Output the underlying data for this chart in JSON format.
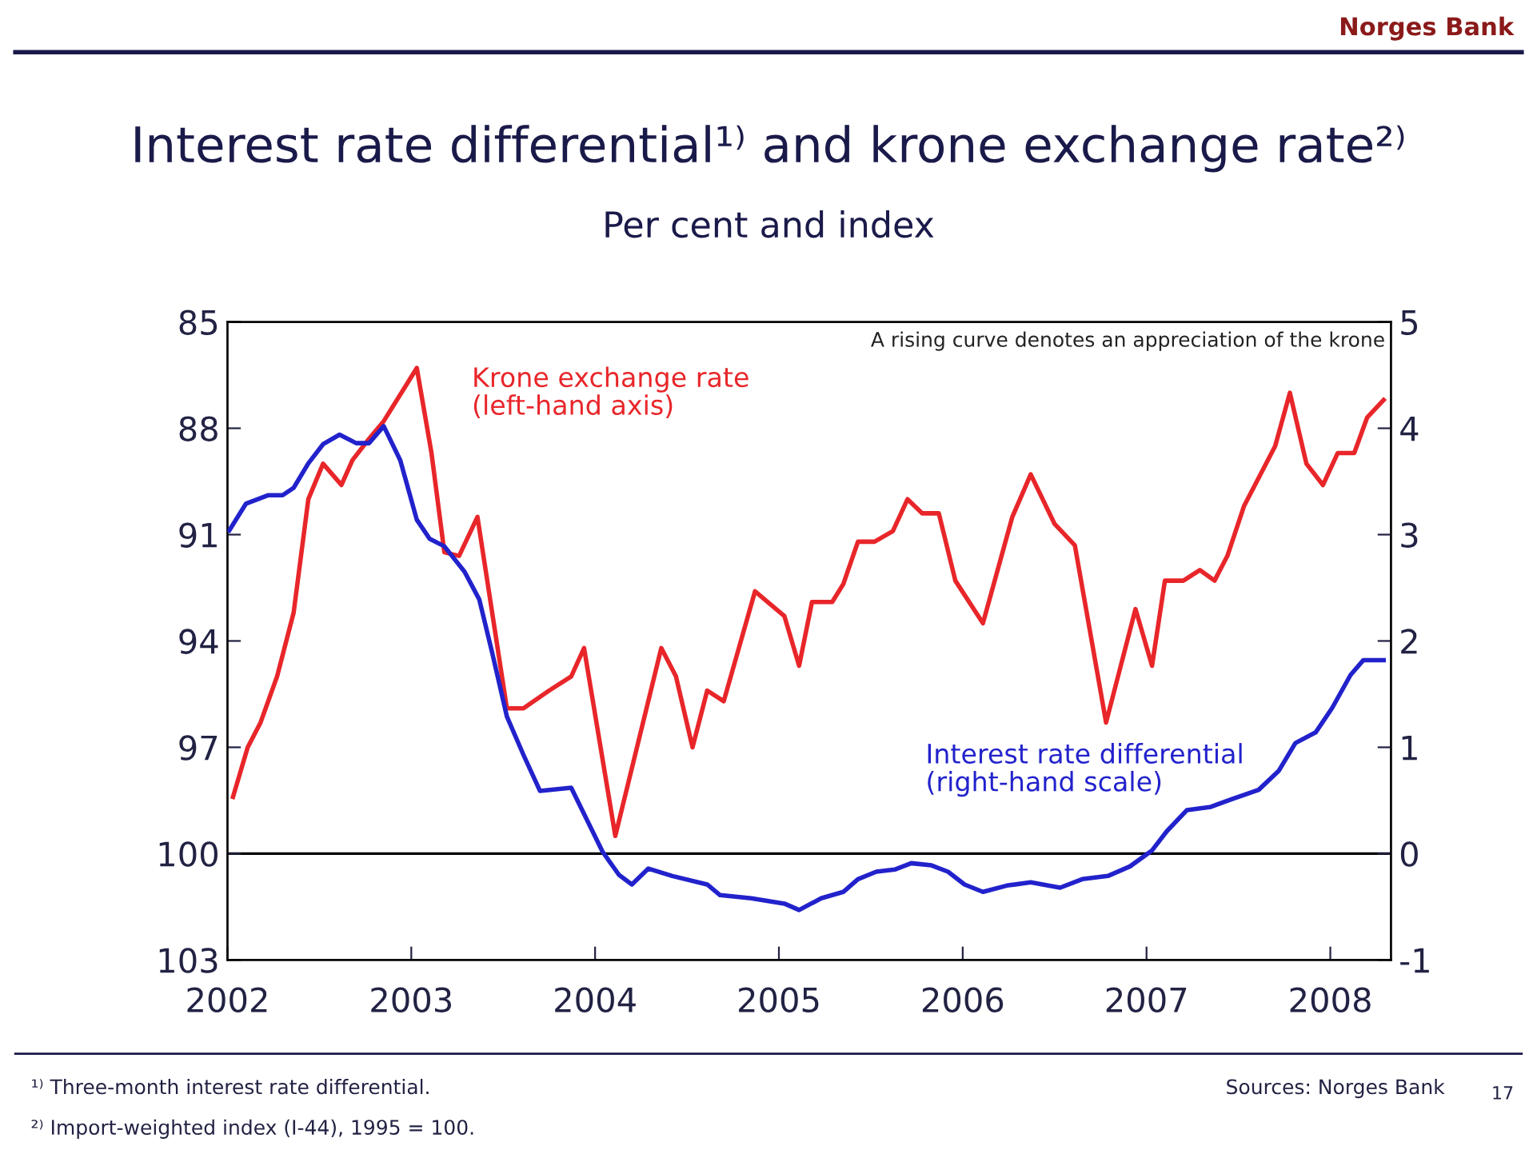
{
  "chart_data": {
    "type": "line",
    "title": "Interest rate differential¹⁾ and krone exchange rate²⁾",
    "subtitle": "Per cent and index",
    "xlim": [
      2002,
      2008.33
    ],
    "xticks": [
      2002,
      2003,
      2004,
      2005,
      2006,
      2007,
      2008
    ],
    "ylim": [
      103,
      85
    ],
    "yticks": [
      85,
      88,
      91,
      94,
      97,
      100,
      103
    ],
    "y2lim": [
      -1,
      5
    ],
    "y2ticks": [
      5,
      4,
      3,
      2,
      1,
      0,
      -1
    ],
    "grid": false,
    "legend": false,
    "line_style": "solid",
    "marker": "none",
    "ref_lines": [
      {
        "axis": "y",
        "value": 100,
        "color": "#000000"
      }
    ],
    "annotations": [
      "Norges Bank",
      "A rising curve denotes an appreciation of the krone",
      "¹⁾ Three-month interest rate differential.",
      "²⁾ Import-weighted index (I-44), 1995 = 100.",
      "Sources: Norges Bank",
      "17"
    ],
    "series": [
      {
        "name": "Krone exchange rate\n(left-hand axis)",
        "color": "#e8262a",
        "axis": "y",
        "x": [
          2002.03,
          2002.11,
          2002.18,
          2002.27,
          2002.36,
          2002.44,
          2002.52,
          2002.62,
          2002.68,
          2002.77,
          2002.85,
          2003.03,
          2003.11,
          2003.18,
          2003.26,
          2003.36,
          2003.52,
          2003.61,
          2003.75,
          2003.87,
          2003.94,
          2004.11,
          2004.36,
          2004.44,
          2004.53,
          2004.61,
          2004.7,
          2004.87,
          2005.03,
          2005.11,
          2005.18,
          2005.29,
          2005.35,
          2005.43,
          2005.52,
          2005.62,
          2005.7,
          2005.78,
          2005.87,
          2005.96,
          2006.11,
          2006.27,
          2006.37,
          2006.5,
          2006.61,
          2006.78,
          2006.94,
          2007.03,
          2007.1,
          2007.2,
          2007.29,
          2007.37,
          2007.44,
          2007.53,
          2007.7,
          2007.78,
          2007.87,
          2007.96,
          2008.04,
          2008.13,
          2008.2,
          2008.29
        ],
        "values": [
          98.4,
          97.0,
          96.3,
          95.0,
          93.2,
          90.0,
          89.0,
          89.6,
          88.9,
          88.3,
          87.8,
          86.3,
          88.7,
          91.5,
          91.6,
          90.5,
          95.9,
          95.9,
          95.4,
          95.0,
          94.2,
          99.5,
          94.2,
          95.0,
          97.0,
          95.4,
          95.7,
          92.6,
          93.3,
          94.7,
          92.9,
          92.9,
          92.4,
          91.2,
          91.2,
          90.9,
          90.0,
          90.4,
          90.4,
          92.3,
          93.5,
          90.5,
          89.3,
          90.7,
          91.3,
          96.3,
          93.1,
          94.7,
          92.3,
          92.3,
          92.0,
          92.3,
          91.6,
          90.2,
          88.5,
          87.0,
          89.0,
          89.6,
          88.7,
          88.7,
          87.7,
          87.2
        ]
      },
      {
        "name": "Interest rate differential\n(right-hand scale)",
        "color": "#2222cc",
        "axis": "y2",
        "x": [
          2002.01,
          2002.1,
          2002.22,
          2002.3,
          2002.36,
          2002.44,
          2002.52,
          2002.61,
          2002.7,
          2002.77,
          2002.85,
          2002.94,
          2003.03,
          2003.1,
          2003.18,
          2003.29,
          2003.37,
          2003.44,
          2003.52,
          2003.61,
          2003.7,
          2003.87,
          2004.04,
          2004.13,
          2004.2,
          2004.29,
          2004.42,
          2004.61,
          2004.68,
          2004.85,
          2005.03,
          2005.11,
          2005.23,
          2005.35,
          2005.43,
          2005.53,
          2005.63,
          2005.72,
          2005.83,
          2005.92,
          2006.01,
          2006.11,
          2006.24,
          2006.37,
          2006.53,
          2006.65,
          2006.79,
          2006.91,
          2007.03,
          2007.11,
          2007.22,
          2007.35,
          2007.46,
          2007.61,
          2007.72,
          2007.81,
          2007.92,
          2008.01,
          2008.11,
          2008.18,
          2008.29
        ],
        "values": [
          3.04,
          3.29,
          3.37,
          3.37,
          3.44,
          3.67,
          3.85,
          3.94,
          3.86,
          3.86,
          4.02,
          3.7,
          3.14,
          2.96,
          2.89,
          2.65,
          2.39,
          1.89,
          1.29,
          0.93,
          0.59,
          0.62,
          0.02,
          -0.2,
          -0.29,
          -0.14,
          -0.21,
          -0.29,
          -0.39,
          -0.42,
          -0.47,
          -0.53,
          -0.42,
          -0.36,
          -0.24,
          -0.17,
          -0.15,
          -0.09,
          -0.11,
          -0.17,
          -0.29,
          -0.36,
          -0.3,
          -0.27,
          -0.32,
          -0.24,
          -0.21,
          -0.12,
          0.03,
          0.21,
          0.41,
          0.44,
          0.51,
          0.6,
          0.78,
          1.04,
          1.14,
          1.37,
          1.68,
          1.82,
          1.82
        ]
      }
    ]
  }
}
